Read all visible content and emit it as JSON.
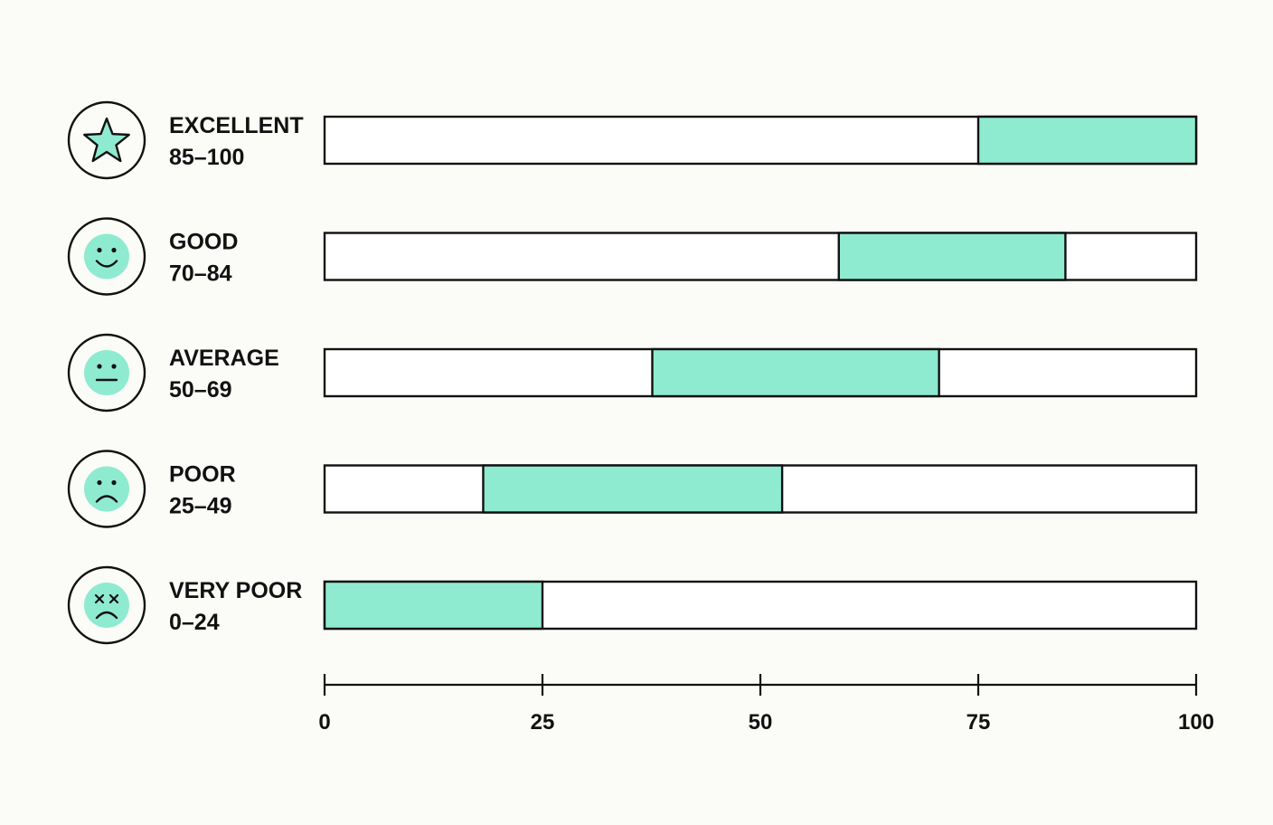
{
  "chart_data": {
    "type": "bar",
    "subtype": "horizontal-range",
    "title": "",
    "xlabel": "",
    "ylabel": "",
    "xlim": [
      0,
      100
    ],
    "grid": false,
    "legend": "none",
    "series_color": "#8eebd0",
    "outline_color": "#111111",
    "categories": [
      {
        "label": "EXCELLENT",
        "range_label": "85–100",
        "icon": "star-icon",
        "start": 75,
        "end": 100
      },
      {
        "label": "GOOD",
        "range_label": "70–84",
        "icon": "smile-face-icon",
        "start": 59,
        "end": 85
      },
      {
        "label": "AVERAGE",
        "range_label": "50–69",
        "icon": "neutral-face-icon",
        "start": 37.6,
        "end": 70.5
      },
      {
        "label": "POOR",
        "range_label": "25–49",
        "icon": "sad-face-icon",
        "start": 18.2,
        "end": 52.5
      },
      {
        "label": "VERY POOR",
        "range_label": "0–24",
        "icon": "x-eyes-face-icon",
        "start": 0,
        "end": 25
      }
    ],
    "x_ticks": [
      {
        "value": 0,
        "label": "0"
      },
      {
        "value": 25,
        "label": "25"
      },
      {
        "value": 50,
        "label": "50"
      },
      {
        "value": 75,
        "label": "75"
      },
      {
        "value": 100,
        "label": "100"
      }
    ]
  }
}
